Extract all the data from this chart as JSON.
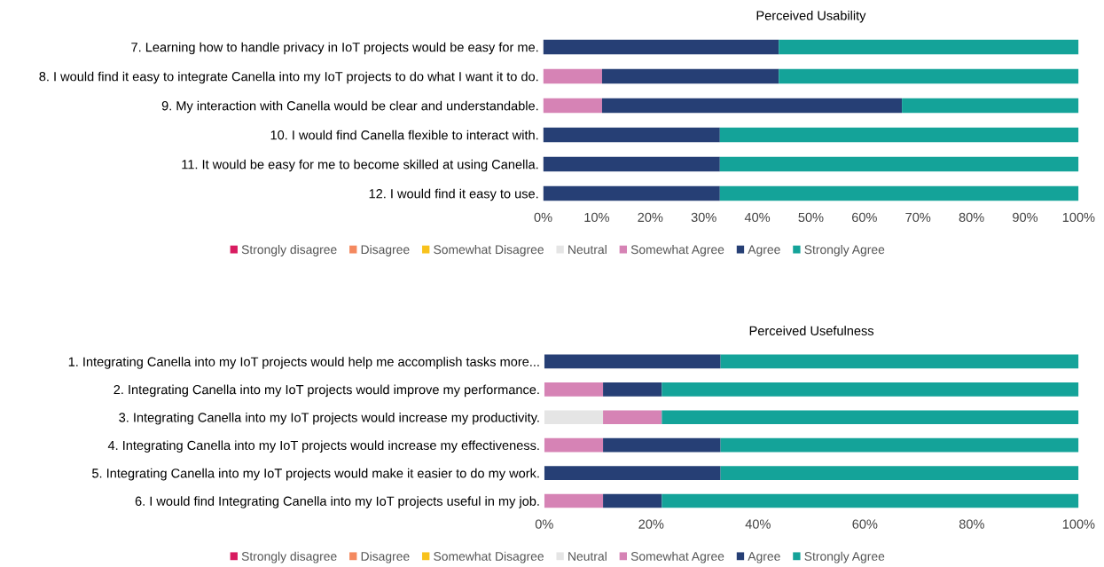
{
  "chart_data": [
    {
      "type": "bar",
      "title": "Perceived Usability",
      "orientation": "horizontal",
      "stacked": true,
      "legend": "bottom",
      "grid": false,
      "categories": [
        "7. Learning how to handle privacy in IoT projects would be easy for me.",
        "8. I would find it easy to integrate Canella into my IoT projects to do what I want it to do.",
        "9. My interaction with Canella would be clear and understandable.",
        "10. I would find Canella flexible to interact with.",
        "11. It would be easy for me to become skilled at using Canella.",
        "12. I would find it easy to use."
      ],
      "xlim": [
        0,
        100
      ],
      "xticks": [
        {
          "value": 0,
          "label": "0%"
        },
        {
          "value": 10,
          "label": "10%"
        },
        {
          "value": 20,
          "label": "20%"
        },
        {
          "value": 30,
          "label": "30%"
        },
        {
          "value": 40,
          "label": "40%"
        },
        {
          "value": 50,
          "label": "50%"
        },
        {
          "value": 60,
          "label": "60%"
        },
        {
          "value": 70,
          "label": "70%"
        },
        {
          "value": 80,
          "label": "80%"
        },
        {
          "value": 90,
          "label": "90%"
        },
        {
          "value": 100,
          "label": "100%"
        }
      ],
      "series": [
        {
          "name": "Strongly disagree",
          "color": "#d81b60",
          "values": [
            0,
            0,
            0,
            0,
            0,
            0
          ]
        },
        {
          "name": "Disagree",
          "color": "#f4895f",
          "values": [
            0,
            0,
            0,
            0,
            0,
            0
          ]
        },
        {
          "name": "Somewhat Disagree",
          "color": "#f8c21c",
          "values": [
            0,
            0,
            0,
            0,
            0,
            0
          ]
        },
        {
          "name": "Neutral",
          "color": "#e5e5e5",
          "values": [
            0,
            0,
            0,
            0,
            0,
            0
          ]
        },
        {
          "name": "Somewhat Agree",
          "color": "#d683b5",
          "values": [
            0,
            11,
            11,
            0,
            0,
            0
          ]
        },
        {
          "name": "Agree",
          "color": "#263f75",
          "values": [
            44,
            33,
            56,
            33,
            33,
            33
          ]
        },
        {
          "name": "Strongly Agree",
          "color": "#14a399",
          "values": [
            56,
            56,
            33,
            67,
            67,
            67
          ]
        }
      ]
    },
    {
      "type": "bar",
      "title": "Perceived Usefulness",
      "orientation": "horizontal",
      "stacked": true,
      "legend": "bottom",
      "grid": false,
      "categories": [
        "1. Integrating Canella into my IoT projects would help me accomplish tasks more...",
        "2. Integrating Canella into my IoT projects would improve my performance.",
        "3. Integrating Canella into my IoT projects would increase my productivity.",
        "4. Integrating Canella into my IoT projects would increase my effectiveness.",
        "5. Integrating Canella into my IoT projects would make it easier to do my work.",
        "6. I would find Integrating Canella into my IoT projects useful in my job."
      ],
      "xlim": [
        0,
        100
      ],
      "xticks": [
        {
          "value": 0,
          "label": "0%"
        },
        {
          "value": 20,
          "label": "20%"
        },
        {
          "value": 40,
          "label": "40%"
        },
        {
          "value": 60,
          "label": "60%"
        },
        {
          "value": 80,
          "label": "80%"
        },
        {
          "value": 100,
          "label": "100%"
        }
      ],
      "series": [
        {
          "name": "Strongly disagree",
          "color": "#d81b60",
          "values": [
            0,
            0,
            0,
            0,
            0,
            0
          ]
        },
        {
          "name": "Disagree",
          "color": "#f4895f",
          "values": [
            0,
            0,
            0,
            0,
            0,
            0
          ]
        },
        {
          "name": "Somewhat Disagree",
          "color": "#f8c21c",
          "values": [
            0,
            0,
            0,
            0,
            0,
            0
          ]
        },
        {
          "name": "Neutral",
          "color": "#e5e5e5",
          "values": [
            0,
            0,
            11,
            0,
            0,
            0
          ]
        },
        {
          "name": "Somewhat Agree",
          "color": "#d683b5",
          "values": [
            0,
            11,
            11,
            11,
            0,
            11
          ]
        },
        {
          "name": "Agree",
          "color": "#263f75",
          "values": [
            33,
            11,
            0,
            22,
            33,
            11
          ]
        },
        {
          "name": "Strongly Agree",
          "color": "#14a399",
          "values": [
            67,
            78,
            78,
            67,
            67,
            78
          ]
        }
      ]
    }
  ]
}
